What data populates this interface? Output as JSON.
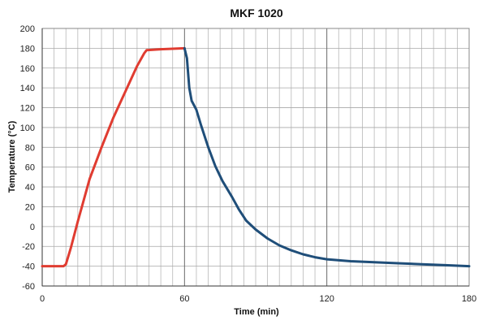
{
  "chart_data": {
    "type": "line",
    "title": "MKF 1020",
    "xlabel": "Time (min)",
    "ylabel": "Temperature (°C)",
    "xlim": [
      0,
      180
    ],
    "ylim": [
      -60,
      200
    ],
    "x_ticks": [
      0,
      60,
      120,
      180
    ],
    "y_ticks": [
      -60,
      -40,
      -20,
      0,
      20,
      40,
      60,
      80,
      100,
      120,
      140,
      160,
      180,
      200
    ],
    "x_minor_step": 5,
    "grid": true,
    "legend": "none",
    "series": [
      {
        "color": "#e03c31",
        "points": [
          [
            0,
            -40
          ],
          [
            9,
            -40
          ],
          [
            10,
            -38
          ],
          [
            12,
            -22
          ],
          [
            15,
            5
          ],
          [
            20,
            48
          ],
          [
            25,
            80
          ],
          [
            30,
            110
          ],
          [
            35,
            136
          ],
          [
            40,
            162
          ],
          [
            43,
            175
          ],
          [
            44,
            178
          ],
          [
            50,
            179
          ],
          [
            60,
            180
          ]
        ]
      },
      {
        "color": "#1f4e79",
        "points": [
          [
            60,
            180
          ],
          [
            61,
            170
          ],
          [
            62,
            140
          ],
          [
            63,
            127
          ],
          [
            65,
            118
          ],
          [
            67,
            102
          ],
          [
            70,
            80
          ],
          [
            73,
            61
          ],
          [
            76,
            46
          ],
          [
            80,
            30
          ],
          [
            83,
            17
          ],
          [
            86,
            6
          ],
          [
            90,
            -3
          ],
          [
            95,
            -12
          ],
          [
            100,
            -19
          ],
          [
            105,
            -24
          ],
          [
            110,
            -28
          ],
          [
            115,
            -31
          ],
          [
            120,
            -33
          ],
          [
            130,
            -35
          ],
          [
            140,
            -36
          ],
          [
            150,
            -37
          ],
          [
            160,
            -38
          ],
          [
            170,
            -39
          ],
          [
            180,
            -40
          ]
        ]
      }
    ]
  }
}
